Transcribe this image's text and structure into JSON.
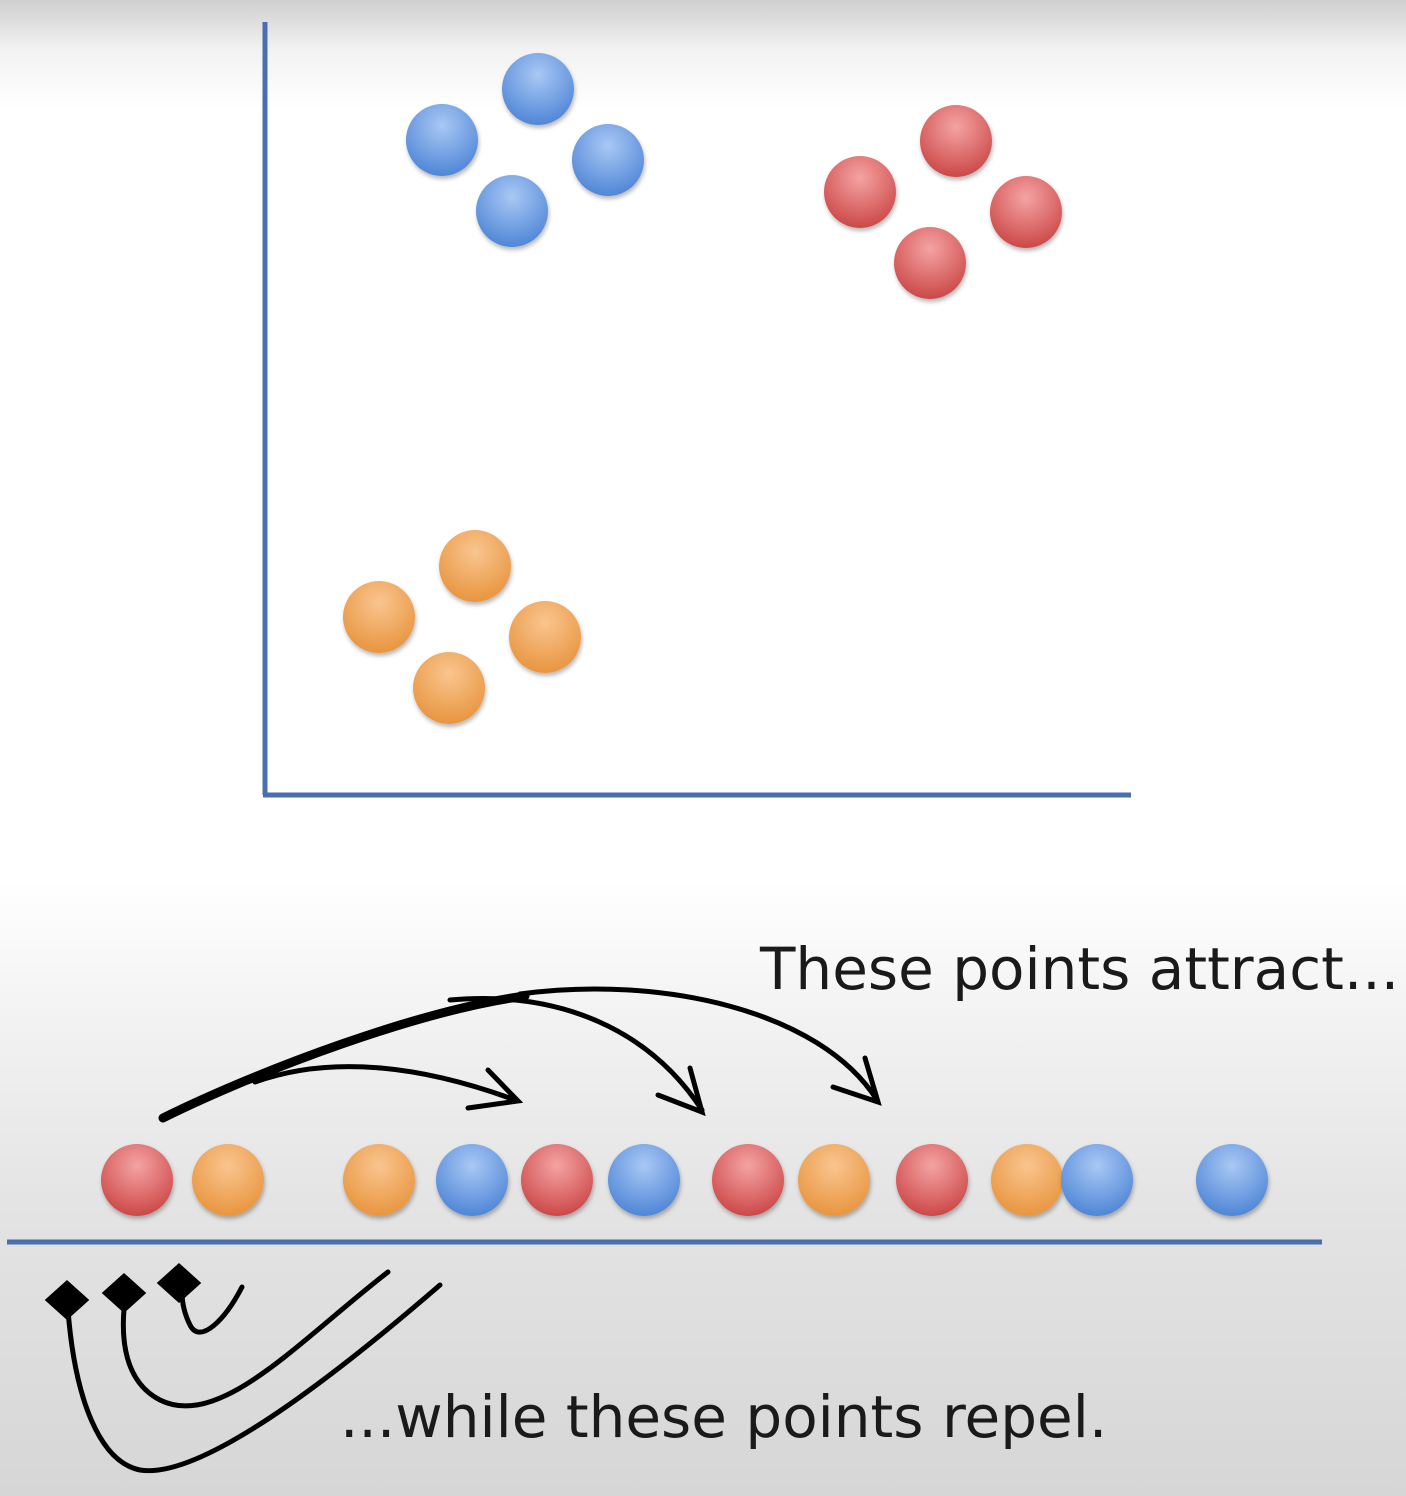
{
  "colors": {
    "axis": "#4a6fb0",
    "arrow": "#000000",
    "blue": "#6f9fe6",
    "red": "#e06666",
    "orange": "#f2a55e"
  },
  "scatter": {
    "clusters": [
      {
        "color": "blue",
        "count": 4
      },
      {
        "color": "red",
        "count": 4
      },
      {
        "color": "orange",
        "count": 4
      }
    ]
  },
  "number_line": {
    "points": [
      "red",
      "orange",
      "orange",
      "blue",
      "red",
      "blue",
      "red",
      "orange",
      "red",
      "orange",
      "blue",
      "blue"
    ]
  },
  "annotations": {
    "attract": "These points attract...",
    "repel": "...while these points repel."
  }
}
